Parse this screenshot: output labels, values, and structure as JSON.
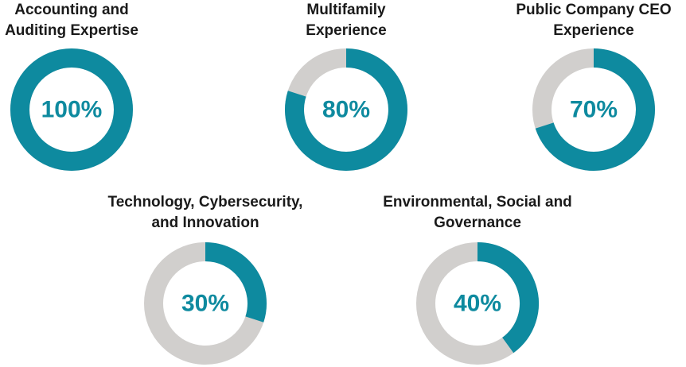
{
  "colors": {
    "filled": "#0e8a9f",
    "remaining": "#d1cfcd",
    "label": "#0e8a9f",
    "title": "#1a1a1a"
  },
  "chart_data": [
    {
      "type": "pie",
      "title_lines": [
        "Accounting and",
        "Auditing Expertise"
      ],
      "value": 100,
      "label": "100%"
    },
    {
      "type": "pie",
      "title_lines": [
        "Multifamily",
        "Experience"
      ],
      "value": 80,
      "label": "80%"
    },
    {
      "type": "pie",
      "title_lines": [
        "Public Company CEO",
        "Experience"
      ],
      "value": 70,
      "label": "70%"
    },
    {
      "type": "pie",
      "title_lines": [
        "Technology, Cybersecurity,",
        "and Innovation"
      ],
      "value": 30,
      "label": "30%"
    },
    {
      "type": "pie",
      "title_lines": [
        "Environmental, Social and",
        "Governance"
      ],
      "value": 40,
      "label": "40%"
    }
  ]
}
